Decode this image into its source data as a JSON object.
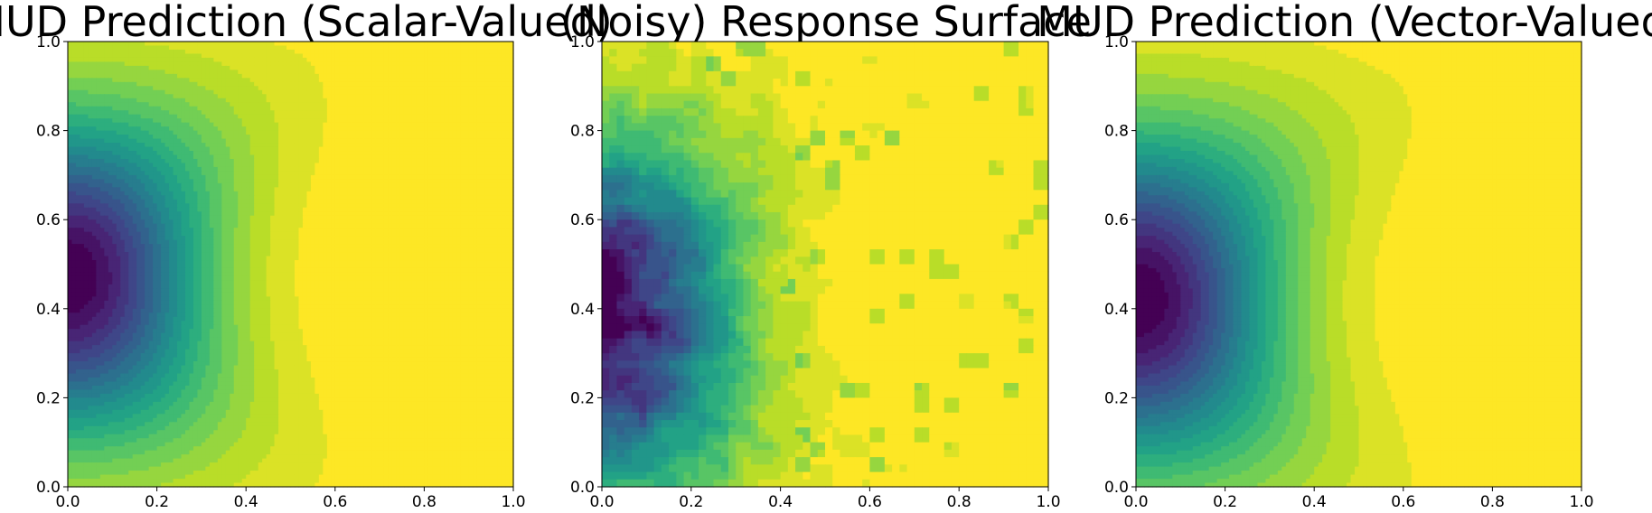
{
  "chart_data": [
    {
      "type": "heatmap",
      "title": "MUD Prediction (Scalar-Valued)",
      "xlabel": "",
      "ylabel": "",
      "xlim": [
        0.0,
        1.0
      ],
      "ylim": [
        0.0,
        1.0
      ],
      "xticks": [
        "0.0",
        "0.2",
        "0.4",
        "0.6",
        "0.8",
        "1.0"
      ],
      "yticks": [
        "0.0",
        "0.2",
        "0.4",
        "0.6",
        "0.8",
        "1.0"
      ],
      "colormap": "viridis",
      "grid": false,
      "field": {
        "kind": "smooth",
        "center": [
          0.0,
          0.47
        ],
        "x_sigma_mid": 0.25,
        "x_sigma_edge": 0.44,
        "y_sigma": 0.3,
        "noise": 0.0
      }
    },
    {
      "type": "heatmap",
      "title": "(Noisy) Response Surface",
      "xlabel": "",
      "ylabel": "",
      "xlim": [
        0.0,
        1.0
      ],
      "ylim": [
        0.0,
        1.0
      ],
      "xticks": [
        "0.0",
        "0.2",
        "0.4",
        "0.6",
        "0.8",
        "1.0"
      ],
      "yticks": [
        "0.0",
        "0.2",
        "0.4",
        "0.6",
        "0.8",
        "1.0"
      ],
      "colormap": "viridis",
      "grid": false,
      "field": {
        "kind": "noisy",
        "center": [
          0.0,
          0.38
        ],
        "x_sigma_mid": 0.24,
        "x_sigma_edge": 0.36,
        "y_sigma": 0.32,
        "noise": 0.32
      }
    },
    {
      "type": "heatmap",
      "title": "MUD Prediction (Vector-Valued)",
      "xlabel": "",
      "ylabel": "",
      "xlim": [
        0.0,
        1.0
      ],
      "ylim": [
        0.0,
        1.0
      ],
      "xticks": [
        "0.0",
        "0.2",
        "0.4",
        "0.6",
        "0.8",
        "1.0"
      ],
      "yticks": [
        "0.0",
        "0.2",
        "0.4",
        "0.6",
        "0.8",
        "1.0"
      ],
      "colormap": "viridis",
      "grid": false,
      "field": {
        "kind": "smooth",
        "center": [
          0.0,
          0.42
        ],
        "x_sigma_mid": 0.26,
        "x_sigma_edge": 0.46,
        "y_sigma": 0.31,
        "noise": 0.0
      }
    }
  ]
}
